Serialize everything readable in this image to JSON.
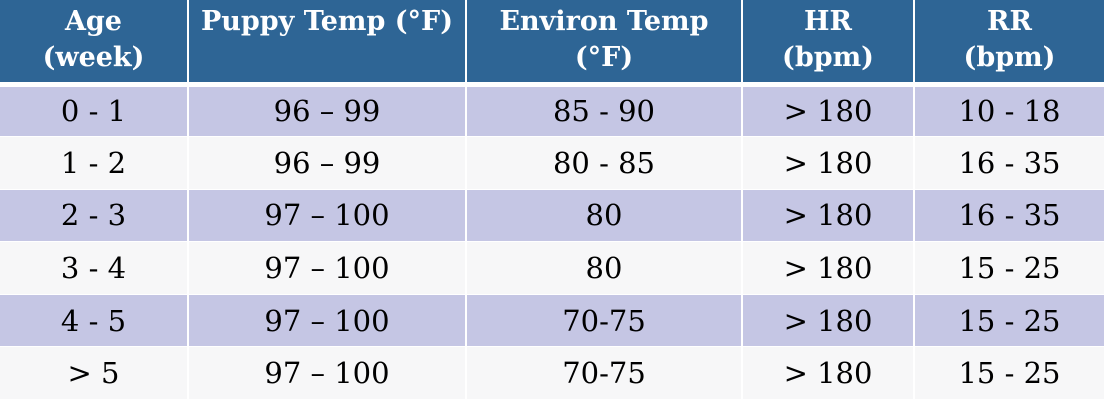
{
  "table": {
    "headers": [
      {
        "line1": "Age (week)",
        "line2": ""
      },
      {
        "line1": "Puppy Temp (°F)",
        "line2": ""
      },
      {
        "line1": "Environ Temp",
        "line2": "(°F)"
      },
      {
        "line1": "HR",
        "line2": "(bpm)"
      },
      {
        "line1": "RR",
        "line2": "(bpm)"
      }
    ],
    "rows": [
      [
        "0 - 1",
        "96 – 99",
        "85 - 90",
        "> 180",
        "10 - 18"
      ],
      [
        "1 - 2",
        "96 – 99",
        "80 - 85",
        "> 180",
        "16 - 35"
      ],
      [
        "2 - 3",
        "97 – 100",
        "80",
        "> 180",
        "16 - 35"
      ],
      [
        "3 - 4",
        "97 – 100",
        "80",
        "> 180",
        "15 - 25"
      ],
      [
        "4 - 5",
        "97 – 100",
        "70-75",
        "> 180",
        "15 - 25"
      ],
      [
        "> 5",
        "97 – 100",
        "70-75",
        "> 180",
        "15 - 25"
      ]
    ]
  },
  "colors": {
    "header_bg": "#2e6595",
    "header_text": "#ffffff",
    "row_band": "#c5c6e4",
    "row_plain": "#f7f7f8"
  }
}
